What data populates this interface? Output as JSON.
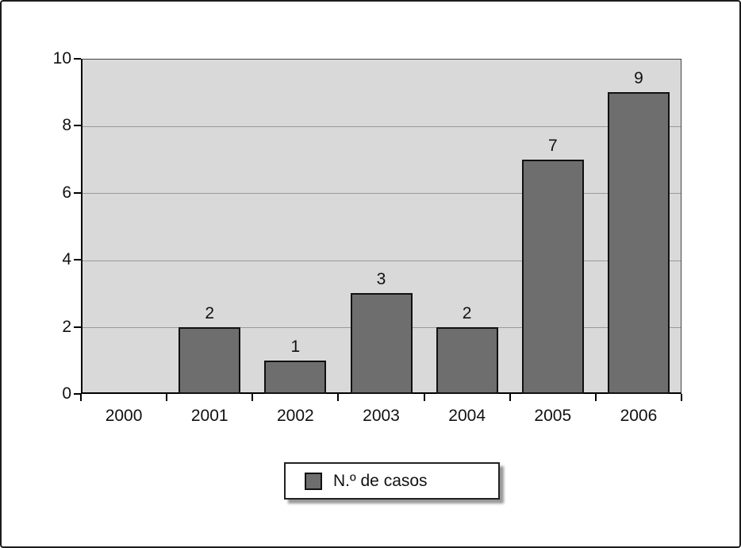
{
  "chart_data": {
    "type": "bar",
    "title": "",
    "categories": [
      "2000",
      "2001",
      "2002",
      "2003",
      "2004",
      "2005",
      "2006"
    ],
    "values": [
      0,
      2,
      1,
      3,
      2,
      7,
      9
    ],
    "data_labels": [
      "",
      "2",
      "1",
      "3",
      "2",
      "7",
      "9"
    ],
    "xlabel": "",
    "ylabel": "",
    "ylim": [
      0,
      10
    ],
    "yticks": [
      0,
      2,
      4,
      6,
      8,
      10
    ],
    "grid": true,
    "legend": {
      "label": "N.º de casos",
      "position": "bottom-center"
    },
    "colors": {
      "bar_fill": "#6e6e6e",
      "bar_border": "#111111",
      "plot_background": "#d9d9d9",
      "gridline": "#9a9a9a",
      "axis": "#000000",
      "frame_border": "#1c1c1c",
      "page_background": "#ffffff"
    }
  }
}
